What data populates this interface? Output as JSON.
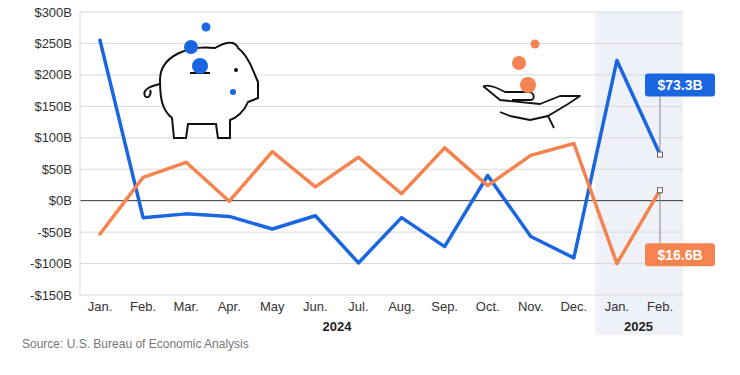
{
  "chart_data": {
    "type": "line",
    "categories": [
      "Jan.",
      "Feb.",
      "Mar.",
      "Apr.",
      "May",
      "Jun.",
      "Jul.",
      "Aug.",
      "Sep.",
      "Oct.",
      "Nov.",
      "Dec.",
      "Jan.",
      "Feb."
    ],
    "x_groups": [
      {
        "label": "2024",
        "count": 12
      },
      {
        "label": "2025",
        "count": 2
      }
    ],
    "series": [
      {
        "color": "#1a66e0",
        "values": [
          255,
          -27,
          -21,
          -25,
          -45,
          -24,
          -99,
          -27,
          -73,
          40,
          -57,
          -91,
          223,
          73.3
        ],
        "value_labels": [
          null,
          null,
          null,
          null,
          null,
          null,
          null,
          null,
          null,
          null,
          null,
          null,
          null,
          "$73.3B"
        ]
      },
      {
        "color": "#f5834f",
        "values": [
          -53,
          37,
          61,
          -1,
          78,
          22,
          69,
          11,
          84,
          24,
          72,
          91,
          -100,
          16.6
        ],
        "value_labels": [
          null,
          null,
          null,
          null,
          null,
          null,
          null,
          null,
          null,
          null,
          null,
          null,
          null,
          "$16.6B"
        ]
      }
    ],
    "ylim": [
      -150,
      300
    ],
    "yticks": [
      {
        "value": -150,
        "label": "-$150B"
      },
      {
        "value": -100,
        "label": "-$100B"
      },
      {
        "value": -50,
        "label": "-$50B"
      },
      {
        "value": 0,
        "label": "$0B"
      },
      {
        "value": 50,
        "label": "$50B"
      },
      {
        "value": 100,
        "label": "$100B"
      },
      {
        "value": 150,
        "label": "$150B"
      },
      {
        "value": 200,
        "label": "$200B"
      },
      {
        "value": 250,
        "label": "$250B"
      },
      {
        "value": 300,
        "label": "$300B"
      }
    ],
    "grid": true,
    "source": "Source: U.S. Bureau of Economic Analysis"
  }
}
